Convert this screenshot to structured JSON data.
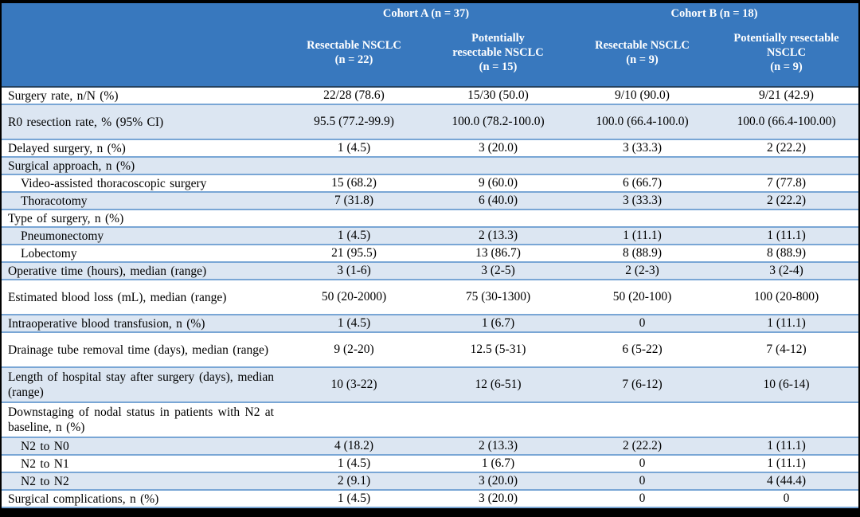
{
  "colors": {
    "header_bg": "#3878BE",
    "header_text": "#FFFFFF",
    "shaded_row": "#DCE6F2",
    "row_border": "#79A6D5",
    "header_underline": "#25425F",
    "outer_frame": "#000000"
  },
  "table": {
    "header": {
      "cohorts": [
        {
          "label": "Cohort A (n = 37)"
        },
        {
          "label": "Cohort B (n = 18)"
        }
      ],
      "subcolumns": [
        {
          "lines": [
            "Resectable NSCLC",
            "(n = 22)"
          ]
        },
        {
          "lines": [
            "Potentially",
            "resectable NSCLC",
            "(n = 15)"
          ]
        },
        {
          "lines": [
            "Resectable NSCLC",
            "(n = 9)"
          ]
        },
        {
          "lines": [
            "Potentially resectable",
            "NSCLC",
            "(n = 9)"
          ]
        }
      ]
    },
    "rows": [
      {
        "label": "Surgery rate, n/N (%)",
        "values": [
          "22/28 (78.6)",
          "15/30 (50.0)",
          "9/10 (90.0)",
          "9/21 (42.9)"
        ],
        "shaded": false,
        "tall": false,
        "indent": false
      },
      {
        "label": "R0 resection rate, % (95% CI)",
        "values": [
          "95.5 (77.2-99.9)",
          "100.0 (78.2-100.0)",
          "100.0 (66.4-100.0)",
          "100.0 (66.4-100.00)"
        ],
        "shaded": true,
        "tall": true,
        "indent": false
      },
      {
        "label": "Delayed surgery, n (%)",
        "values": [
          "1 (4.5)",
          "3 (20.0)",
          "3 (33.3)",
          "2 (22.2)"
        ],
        "shaded": false,
        "tall": false,
        "indent": false
      },
      {
        "label": "Surgical approach, n (%)",
        "values": [
          "",
          "",
          "",
          ""
        ],
        "shaded": true,
        "tall": false,
        "indent": false
      },
      {
        "label": "Video-assisted thoracoscopic surgery",
        "values": [
          "15 (68.2)",
          "9 (60.0)",
          "6 (66.7)",
          "7 (77.8)"
        ],
        "shaded": false,
        "tall": false,
        "indent": true
      },
      {
        "label": "Thoracotomy",
        "values": [
          "7 (31.8)",
          "6 (40.0)",
          "3 (33.3)",
          "2 (22.2)"
        ],
        "shaded": true,
        "tall": false,
        "indent": true
      },
      {
        "label": "Type of surgery, n (%)",
        "values": [
          "",
          "",
          "",
          ""
        ],
        "shaded": false,
        "tall": false,
        "indent": false
      },
      {
        "label": "Pneumonectomy",
        "values": [
          "1 (4.5)",
          "2 (13.3)",
          "1 (11.1)",
          "1 (11.1)"
        ],
        "shaded": true,
        "tall": false,
        "indent": true
      },
      {
        "label": "Lobectomy",
        "values": [
          "21 (95.5)",
          "13 (86.7)",
          "8 (88.9)",
          "8 (88.9)"
        ],
        "shaded": false,
        "tall": false,
        "indent": true
      },
      {
        "label": "Operative time (hours), median (range)",
        "values": [
          "3 (1-6)",
          "3 (2-5)",
          "2 (2-3)",
          "3 (2-4)"
        ],
        "shaded": true,
        "tall": false,
        "indent": false
      },
      {
        "label": "Estimated blood loss (mL), median (range)",
        "values": [
          "50 (20-2000)",
          "75 (30-1300)",
          "50 (20-100)",
          "100 (20-800)"
        ],
        "shaded": false,
        "tall": true,
        "indent": false
      },
      {
        "label": "Intraoperative blood transfusion, n (%)",
        "values": [
          "1 (4.5)",
          "1 (6.7)",
          "0",
          "1 (11.1)"
        ],
        "shaded": true,
        "tall": false,
        "indent": false
      },
      {
        "label": "Drainage tube removal time (days), median (range)",
        "values": [
          "9 (2-20)",
          "12.5 (5-31)",
          "6 (5-22)",
          "7 (4-12)"
        ],
        "shaded": false,
        "tall": true,
        "indent": false
      },
      {
        "label": "Length of hospital stay after surgery (days), median (range)",
        "values": [
          "10 (3-22)",
          "12 (6-51)",
          "7 (6-12)",
          "10 (6-14)"
        ],
        "shaded": true,
        "tall": true,
        "indent": false
      },
      {
        "label": "Downstaging of nodal status in patients with N2 at baseline, n (%)",
        "values": [
          "",
          "",
          "",
          ""
        ],
        "shaded": false,
        "tall": true,
        "indent": false
      },
      {
        "label": "N2 to N0",
        "values": [
          "4 (18.2)",
          "2 (13.3)",
          "2 (22.2)",
          "1 (11.1)"
        ],
        "shaded": true,
        "tall": false,
        "indent": true
      },
      {
        "label": "N2 to N1",
        "values": [
          "1 (4.5)",
          "1 (6.7)",
          "0",
          "1 (11.1)"
        ],
        "shaded": false,
        "tall": false,
        "indent": true
      },
      {
        "label": "N2 to N2",
        "values": [
          "2 (9.1)",
          "3 (20.0)",
          "0",
          "4 (44.4)"
        ],
        "shaded": true,
        "tall": false,
        "indent": true
      },
      {
        "label": "Surgical complications, n (%)",
        "values": [
          "1 (4.5)",
          "3 (20.0)",
          "0",
          "0"
        ],
        "shaded": false,
        "tall": false,
        "indent": false
      }
    ]
  }
}
